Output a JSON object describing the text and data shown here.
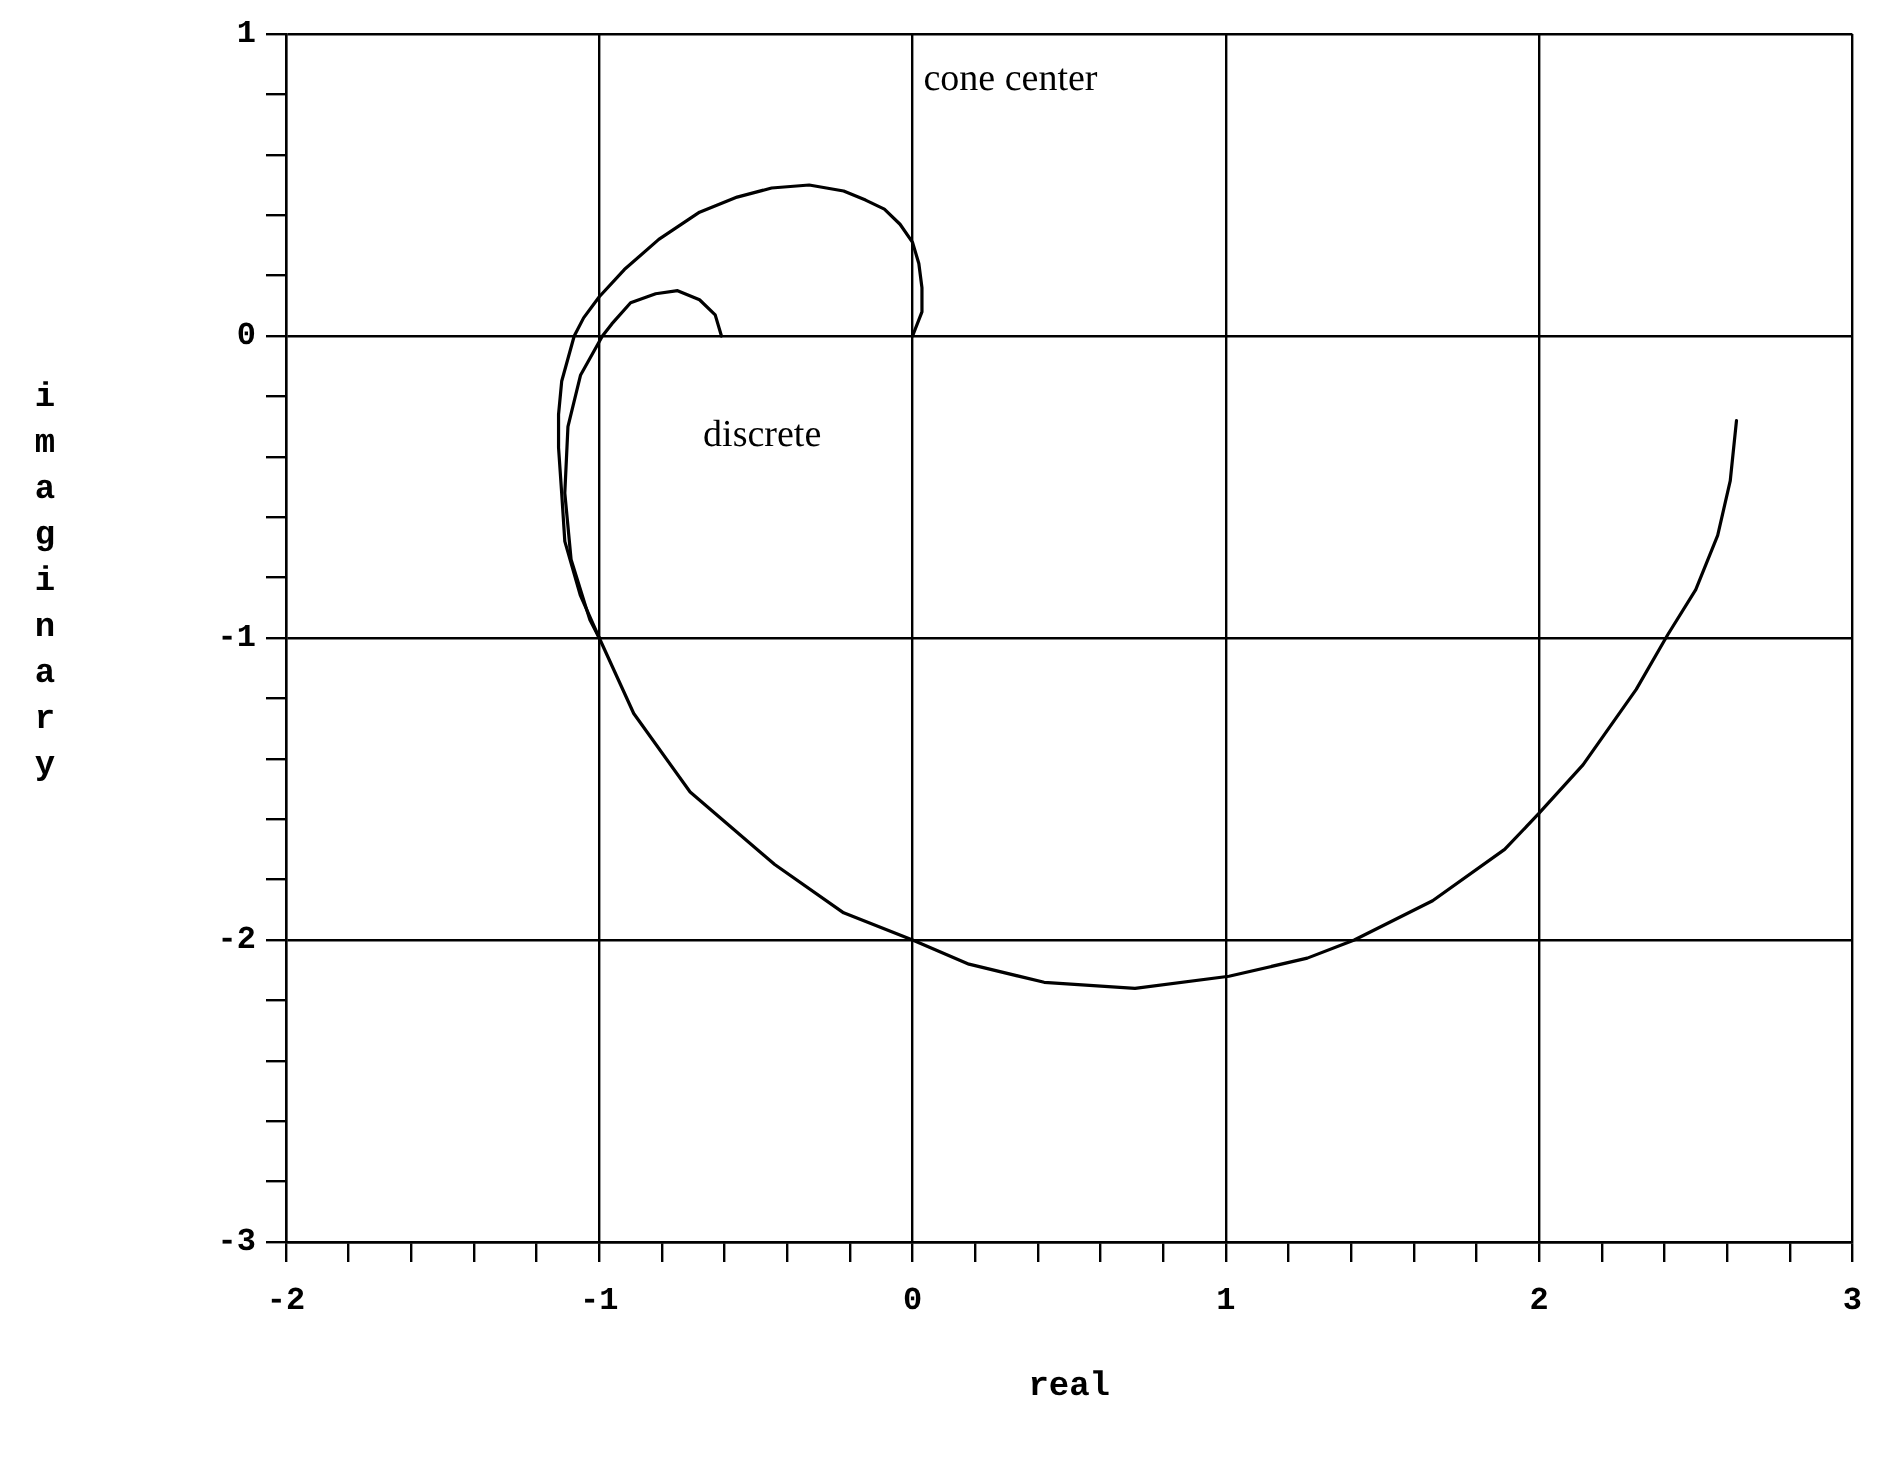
{
  "chart_data": {
    "type": "line",
    "xlabel": "real",
    "ylabel": "imaginary",
    "xlim": [
      -2,
      3
    ],
    "ylim": [
      -3,
      1
    ],
    "xticks": [
      -2,
      {
        "value": -1.8,
        "label": null
      },
      {
        "value": -1.6,
        "label": null
      },
      {
        "value": -1.4,
        "label": null
      },
      {
        "value": -1.2,
        "label": null
      },
      -1,
      {
        "value": -0.8,
        "label": null
      },
      {
        "value": -0.6,
        "label": null
      },
      {
        "value": -0.4,
        "label": null
      },
      {
        "value": -0.2,
        "label": null
      },
      0,
      {
        "value": 0.2,
        "label": null
      },
      {
        "value": 0.4,
        "label": null
      },
      {
        "value": 0.6,
        "label": null
      },
      {
        "value": 0.8,
        "label": null
      },
      1,
      {
        "value": 1.2,
        "label": null
      },
      {
        "value": 1.4,
        "label": null
      },
      {
        "value": 1.6,
        "label": null
      },
      {
        "value": 1.8,
        "label": null
      },
      2,
      {
        "value": 2.2,
        "label": null
      },
      {
        "value": 2.4,
        "label": null
      },
      {
        "value": 2.6,
        "label": null
      },
      {
        "value": 2.8,
        "label": null
      },
      3
    ],
    "yticks": [
      -3,
      {
        "value": -2.8,
        "label": null
      },
      {
        "value": -2.6,
        "label": null
      },
      {
        "value": -2.4,
        "label": null
      },
      {
        "value": -2.2,
        "label": null
      },
      -2,
      {
        "value": -1.8,
        "label": null
      },
      {
        "value": -1.6,
        "label": null
      },
      {
        "value": -1.4,
        "label": null
      },
      {
        "value": -1.2,
        "label": null
      },
      -1,
      {
        "value": -0.8,
        "label": null
      },
      {
        "value": -0.6,
        "label": null
      },
      {
        "value": -0.4,
        "label": null
      },
      {
        "value": -0.2,
        "label": null
      },
      0,
      {
        "value": 0.2,
        "label": null
      },
      {
        "value": 0.4,
        "label": null
      },
      {
        "value": 0.6,
        "label": null
      },
      {
        "value": 0.8,
        "label": null
      },
      1
    ],
    "grid": true,
    "marker": "none",
    "line_style": "solid",
    "series": [
      {
        "color": "#000000",
        "x": [
          0,
          0.03,
          0.03,
          0.02,
          0,
          -0.04,
          -0.09,
          -0.15,
          -0.22,
          -0.33,
          -0.45,
          -0.56,
          -0.68,
          -0.81,
          -0.92,
          -1,
          -1.05,
          -1.08,
          -1.12,
          -1.13,
          -1.13,
          -1.12,
          -1.11,
          -1.06,
          -1,
          -0.89,
          -0.71,
          -0.44,
          -0.22,
          0,
          0.18,
          0.42,
          0.71,
          1.01,
          1.26,
          1.41,
          1.66,
          1.89,
          2,
          2.14,
          2.31,
          2.41,
          2.5,
          2.57,
          2.61,
          2.63
        ],
        "values": [
          0,
          0.08,
          0.16,
          0.24,
          0.31,
          0.37,
          0.42,
          0.45,
          0.48,
          0.5,
          0.49,
          0.46,
          0.41,
          0.32,
          0.22,
          0.13,
          0.06,
          0,
          -0.15,
          -0.26,
          -0.37,
          -0.52,
          -0.68,
          -0.86,
          -1,
          -1.25,
          -1.51,
          -1.75,
          -1.91,
          -2,
          -2.08,
          -2.14,
          -2.16,
          -2.12,
          -2.06,
          -2,
          -1.87,
          -1.7,
          -1.58,
          -1.42,
          -1.17,
          -0.99,
          -0.84,
          -0.66,
          -0.48,
          -0.28
        ]
      },
      {
        "color": "#000000",
        "x": [
          -0.61,
          -0.63,
          -0.68,
          -0.75,
          -0.82,
          -0.9,
          -0.96,
          -0.99,
          -1.06,
          -1.1,
          -1.11,
          -1.09,
          -1.03,
          -1
        ],
        "values": [
          0,
          0.07,
          0.12,
          0.15,
          0.14,
          0.11,
          0.04,
          0,
          -0.13,
          -0.3,
          -0.52,
          -0.74,
          -0.94,
          -1
        ]
      }
    ],
    "annotations": [
      "cone center",
      "discrete"
    ]
  }
}
